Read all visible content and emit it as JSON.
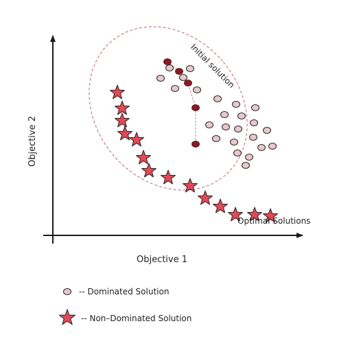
{
  "chart_data": {
    "type": "scatter",
    "xlabel": "Objective 1",
    "ylabel": "Objective 2",
    "annotations": {
      "initial_region": "Initial solution",
      "optimal_front": "Optimal Solutions"
    },
    "legend": {
      "dominated": "-- Dominated Solution",
      "non_dominated": "-- Non–Dominated Solution"
    },
    "colors": {
      "axis": "#1a1a1a",
      "dominated_fill": "#e8c8cb",
      "path_fill": "#8b1a24",
      "star_fill": "#e04a56",
      "ellipse": "#c77b80"
    },
    "dominated": [
      [
        170,
        12
      ],
      [
        200,
        13
      ],
      [
        157,
        27
      ],
      [
        190,
        26
      ],
      [
        178,
        42
      ],
      [
        210,
        44
      ],
      [
        240,
        57
      ],
      [
        267,
        65
      ],
      [
        295,
        70
      ],
      [
        250,
        80
      ],
      [
        275,
        82
      ],
      [
        293,
        92
      ],
      [
        228,
        95
      ],
      [
        252,
        98
      ],
      [
        270,
        101
      ],
      [
        312,
        103
      ],
      [
        238,
        115
      ],
      [
        264,
        120
      ],
      [
        292,
        113
      ],
      [
        304,
        128
      ],
      [
        320,
        126
      ],
      [
        269,
        136
      ],
      [
        286,
        142
      ],
      [
        281,
        154
      ]
    ],
    "path": [
      [
        167,
        3
      ],
      [
        184,
        17
      ],
      [
        197,
        34
      ],
      [
        208,
        70
      ],
      [
        208,
        123
      ]
    ],
    "stars": [
      [
        94,
        48
      ],
      [
        101,
        71
      ],
      [
        101,
        89
      ],
      [
        105,
        108
      ],
      [
        122,
        117
      ],
      [
        132,
        143
      ],
      [
        140,
        162
      ],
      [
        168,
        172
      ],
      [
        200,
        184
      ],
      [
        222,
        202
      ],
      [
        244,
        214
      ],
      [
        266,
        226
      ],
      [
        294,
        226
      ],
      [
        317,
        228
      ]
    ]
  }
}
